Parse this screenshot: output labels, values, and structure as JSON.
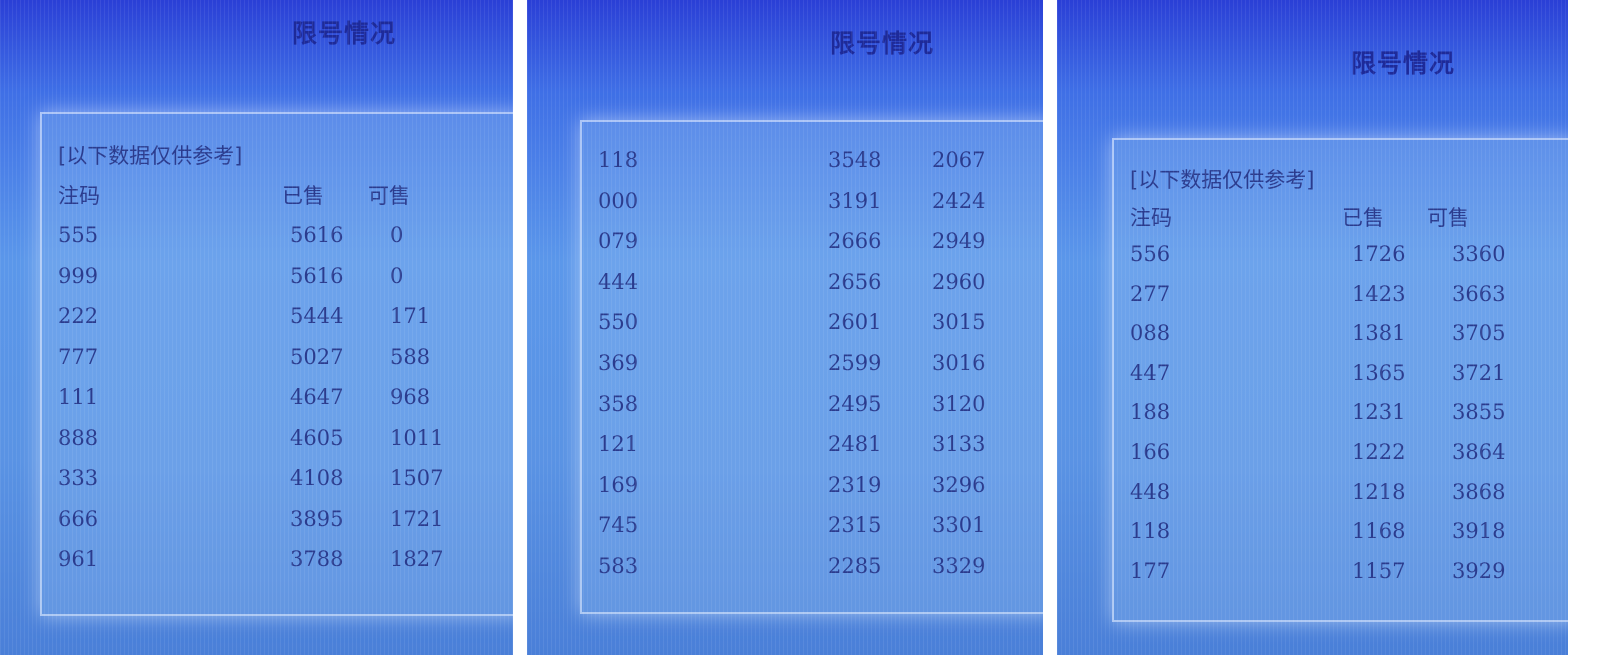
{
  "panels": [
    {
      "title": "限号情况",
      "note": "[以下数据仅供参考]",
      "headers": {
        "code": "注码",
        "sold": "已售",
        "available": "可售"
      },
      "rows": [
        {
          "code": "555",
          "sold": "5616",
          "available": "0"
        },
        {
          "code": "999",
          "sold": "5616",
          "available": "0"
        },
        {
          "code": "222",
          "sold": "5444",
          "available": "171"
        },
        {
          "code": "777",
          "sold": "5027",
          "available": "588"
        },
        {
          "code": "111",
          "sold": "4647",
          "available": "968"
        },
        {
          "code": "888",
          "sold": "4605",
          "available": "1011"
        },
        {
          "code": "333",
          "sold": "4108",
          "available": "1507"
        },
        {
          "code": "666",
          "sold": "3895",
          "available": "1721"
        },
        {
          "code": "961",
          "sold": "3788",
          "available": "1827"
        }
      ]
    },
    {
      "title": "限号情况",
      "rows": [
        {
          "code": "118",
          "sold": "3548",
          "available": "2067"
        },
        {
          "code": "000",
          "sold": "3191",
          "available": "2424"
        },
        {
          "code": "079",
          "sold": "2666",
          "available": "2949"
        },
        {
          "code": "444",
          "sold": "2656",
          "available": "2960"
        },
        {
          "code": "550",
          "sold": "2601",
          "available": "3015"
        },
        {
          "code": "369",
          "sold": "2599",
          "available": "3016"
        },
        {
          "code": "358",
          "sold": "2495",
          "available": "3120"
        },
        {
          "code": "121",
          "sold": "2481",
          "available": "3133"
        },
        {
          "code": "169",
          "sold": "2319",
          "available": "3296"
        },
        {
          "code": "745",
          "sold": "2315",
          "available": "3301"
        },
        {
          "code": "583",
          "sold": "2285",
          "available": "3329"
        }
      ]
    },
    {
      "title": "限号情况",
      "note": "[以下数据仅供参考]",
      "headers": {
        "code": "注码",
        "sold": "已售",
        "available": "可售"
      },
      "rows": [
        {
          "code": "556",
          "sold": "1726",
          "available": "3360"
        },
        {
          "code": "277",
          "sold": "1423",
          "available": "3663"
        },
        {
          "code": "088",
          "sold": "1381",
          "available": "3705"
        },
        {
          "code": "447",
          "sold": "1365",
          "available": "3721"
        },
        {
          "code": "188",
          "sold": "1231",
          "available": "3855"
        },
        {
          "code": "166",
          "sold": "1222",
          "available": "3864"
        },
        {
          "code": "448",
          "sold": "1218",
          "available": "3868"
        },
        {
          "code": "118",
          "sold": "1168",
          "available": "3918"
        },
        {
          "code": "177",
          "sold": "1157",
          "available": "3929"
        }
      ]
    }
  ]
}
